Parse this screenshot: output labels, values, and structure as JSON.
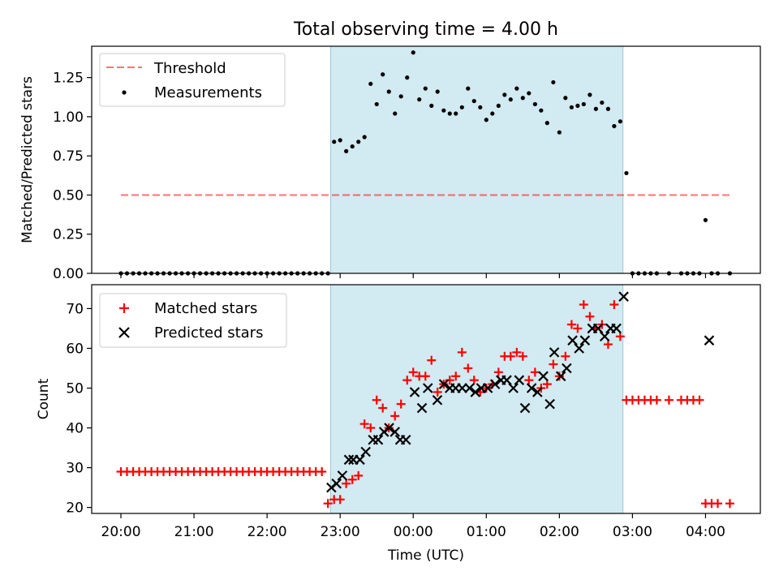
{
  "title": "Total observing time = 4.00 h",
  "xlabel": "Time (UTC)",
  "x_ticks": [
    "20:00",
    "21:00",
    "22:00",
    "23:00",
    "00:00",
    "01:00",
    "02:00",
    "03:00",
    "04:00"
  ],
  "colors": {
    "observing_window": "#add8e6",
    "threshold": "#ff0000",
    "measurements": "#000000",
    "matched": "#ff0000",
    "predicted": "#000000"
  },
  "chart_data": [
    {
      "type": "scatter",
      "panel": "top",
      "ylabel": "Matched/Predicted stars",
      "xlim_hours": [
        19.6,
        28.75
      ],
      "ylim": [
        0,
        1.45
      ],
      "y_ticks": [
        "0.00",
        "0.25",
        "0.50",
        "0.75",
        "1.00",
        "1.25"
      ],
      "y_tick_values": [
        0,
        0.25,
        0.5,
        0.75,
        1.0,
        1.25
      ],
      "observing_window_hours": [
        22.87,
        26.87
      ],
      "legend_position": "top-left",
      "legend": [
        "Threshold",
        "Measurements"
      ],
      "threshold": {
        "name": "Threshold",
        "value": 0.5,
        "x_range_hours": [
          20.0,
          28.35
        ]
      },
      "series": [
        {
          "name": "Measurements",
          "x_hours": [
            20.0,
            20.083,
            20.167,
            20.25,
            20.333,
            20.417,
            20.5,
            20.583,
            20.667,
            20.75,
            20.833,
            20.917,
            21.0,
            21.083,
            21.167,
            21.25,
            21.333,
            21.417,
            21.5,
            21.583,
            21.667,
            21.75,
            21.833,
            21.917,
            22.0,
            22.083,
            22.167,
            22.25,
            22.333,
            22.417,
            22.5,
            22.583,
            22.667,
            22.75,
            22.833,
            22.917,
            23.0,
            23.083,
            23.167,
            23.25,
            23.333,
            23.417,
            23.5,
            23.583,
            23.667,
            23.75,
            23.833,
            23.917,
            24.0,
            24.083,
            24.167,
            24.25,
            24.333,
            24.417,
            24.5,
            24.583,
            24.667,
            24.75,
            24.833,
            24.917,
            25.0,
            25.083,
            25.167,
            25.25,
            25.333,
            25.417,
            25.5,
            25.583,
            25.667,
            25.75,
            25.833,
            25.917,
            26.0,
            26.083,
            26.167,
            26.25,
            26.333,
            26.417,
            26.5,
            26.583,
            26.667,
            26.75,
            26.833,
            26.917,
            27.0,
            27.083,
            27.167,
            27.25,
            27.333,
            27.5,
            27.667,
            27.75,
            27.833,
            27.917,
            28.0,
            28.083,
            28.167,
            28.333
          ],
          "y": [
            0,
            0,
            0,
            0,
            0,
            0,
            0,
            0,
            0,
            0,
            0,
            0,
            0,
            0,
            0,
            0,
            0,
            0,
            0,
            0,
            0,
            0,
            0,
            0,
            0,
            0,
            0,
            0,
            0,
            0,
            0,
            0,
            0,
            0,
            0,
            0.84,
            0.85,
            0.78,
            0.81,
            0.84,
            0.87,
            1.21,
            1.08,
            1.27,
            1.16,
            1.02,
            1.13,
            1.25,
            1.41,
            1.11,
            1.18,
            1.07,
            1.16,
            1.04,
            1.02,
            1.02,
            1.06,
            1.18,
            1.1,
            1.06,
            0.98,
            1.02,
            1.07,
            1.14,
            1.11,
            1.18,
            1.12,
            1.15,
            1.08,
            1.04,
            0.96,
            1.22,
            0.9,
            1.12,
            1.06,
            1.07,
            1.08,
            1.14,
            1.05,
            1.09,
            1.05,
            0.94,
            0.97,
            0.64,
            0,
            0,
            0,
            0,
            0,
            0,
            0,
            0,
            0,
            0,
            0.34,
            0,
            0,
            0
          ]
        }
      ]
    },
    {
      "type": "scatter",
      "panel": "bottom",
      "ylabel": "Count",
      "xlim_hours": [
        19.6,
        28.75
      ],
      "ylim": [
        18.5,
        76
      ],
      "y_ticks": [
        "20",
        "30",
        "40",
        "50",
        "60",
        "70"
      ],
      "y_tick_values": [
        20,
        30,
        40,
        50,
        60,
        70
      ],
      "observing_window_hours": [
        22.87,
        26.87
      ],
      "legend_position": "top-left",
      "legend": [
        "Matched stars",
        "Predicted stars"
      ],
      "series": [
        {
          "name": "Matched stars",
          "marker": "plus",
          "x_hours": [
            20.0,
            20.083,
            20.167,
            20.25,
            20.333,
            20.417,
            20.5,
            20.583,
            20.667,
            20.75,
            20.833,
            20.917,
            21.0,
            21.083,
            21.167,
            21.25,
            21.333,
            21.417,
            21.5,
            21.583,
            21.667,
            21.75,
            21.833,
            21.917,
            22.0,
            22.083,
            22.167,
            22.25,
            22.333,
            22.417,
            22.5,
            22.583,
            22.667,
            22.75,
            22.833,
            22.917,
            23.0,
            23.083,
            23.167,
            23.25,
            23.333,
            23.417,
            23.5,
            23.583,
            23.667,
            23.75,
            23.833,
            23.917,
            24.0,
            24.083,
            24.167,
            24.25,
            24.333,
            24.417,
            24.5,
            24.583,
            24.667,
            24.75,
            24.833,
            24.917,
            25.0,
            25.083,
            25.167,
            25.25,
            25.333,
            25.417,
            25.5,
            25.583,
            25.667,
            25.75,
            25.833,
            25.917,
            26.0,
            26.083,
            26.167,
            26.25,
            26.333,
            26.417,
            26.5,
            26.583,
            26.667,
            26.75,
            26.833,
            26.917,
            27.0,
            27.083,
            27.167,
            27.25,
            27.333,
            27.5,
            27.667,
            27.75,
            27.833,
            27.917,
            28.0,
            28.083,
            28.167,
            28.333
          ],
          "y": [
            29,
            29,
            29,
            29,
            29,
            29,
            29,
            29,
            29,
            29,
            29,
            29,
            29,
            29,
            29,
            29,
            29,
            29,
            29,
            29,
            29,
            29,
            29,
            29,
            29,
            29,
            29,
            29,
            29,
            29,
            29,
            29,
            29,
            29,
            21,
            22,
            22,
            26,
            27,
            28,
            41,
            40,
            47,
            45,
            40,
            43,
            46,
            52,
            54,
            53,
            53,
            57,
            49,
            51,
            52,
            53,
            59,
            55,
            52,
            49,
            50,
            51,
            54,
            58,
            58,
            59,
            58,
            52,
            54,
            50,
            51,
            56,
            53,
            58,
            66,
            65,
            71,
            68,
            65,
            66,
            61,
            71,
            63,
            47,
            47,
            47,
            47,
            47,
            47,
            47,
            47,
            47,
            47,
            47,
            21,
            21,
            21,
            21
          ]
        },
        {
          "name": "Predicted stars",
          "marker": "x",
          "x_hours": [
            22.88,
            22.95,
            23.03,
            23.12,
            23.18,
            23.27,
            23.35,
            23.45,
            23.52,
            23.6,
            23.67,
            23.75,
            23.82,
            23.9,
            24.02,
            24.12,
            24.2,
            24.33,
            24.42,
            24.5,
            24.58,
            24.67,
            24.77,
            24.85,
            24.93,
            25.02,
            25.12,
            25.2,
            25.28,
            25.37,
            25.45,
            25.53,
            25.62,
            25.7,
            25.78,
            25.87,
            25.93,
            26.02,
            26.1,
            26.18,
            26.27,
            26.35,
            26.45,
            26.53,
            26.62,
            26.7,
            26.78,
            26.88,
            28.05
          ],
          "y": [
            25,
            26,
            28,
            32,
            32,
            32,
            34,
            37,
            37,
            39,
            40,
            39,
            37,
            37,
            49,
            45,
            50,
            47,
            51,
            50,
            50,
            50,
            50,
            49,
            50,
            50,
            51,
            52,
            52,
            50,
            52,
            45,
            50,
            49,
            53,
            46,
            59,
            53,
            55,
            62,
            60,
            62,
            65,
            65,
            63,
            65,
            65,
            73,
            62
          ]
        }
      ]
    }
  ]
}
